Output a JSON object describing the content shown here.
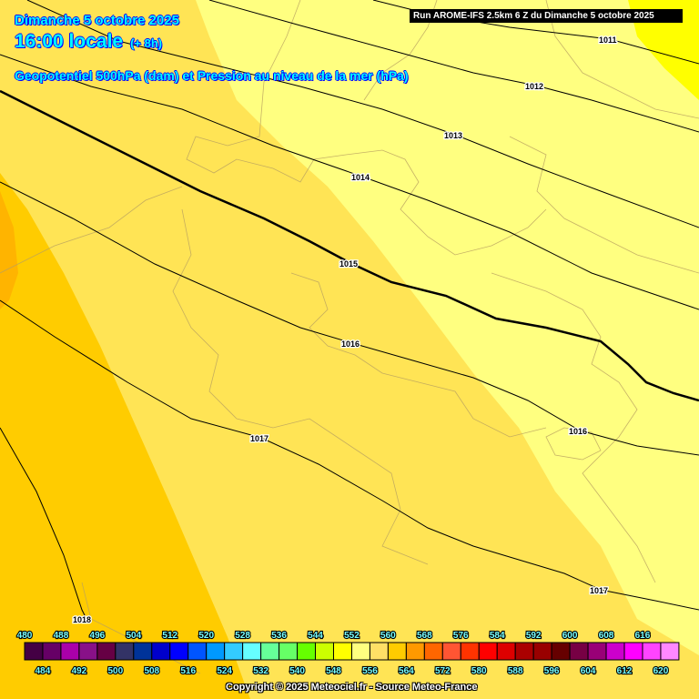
{
  "header": {
    "date": "Dimanche 5 octobre 2025",
    "time": "16:00 locale",
    "offset": "(+ 8h)",
    "parameter": "Geopotentiel 500hPa (dam) et Pression au niveau de la mer (hPa)",
    "run": "Run AROME-IFS 2.5km 6 Z du Dimanche 5 octobre 2025"
  },
  "map": {
    "field_colors": {
      "552": "#ffff00",
      "556": "#ffff80",
      "560": "#ffe455",
      "564": "#ffcc00"
    },
    "isobar_labels": [
      "1011",
      "1012",
      "1013",
      "1014",
      "1015",
      "1016",
      "1017",
      "1016",
      "1017",
      "1018"
    ]
  },
  "legend": {
    "values": [
      480,
      484,
      488,
      492,
      496,
      500,
      504,
      508,
      512,
      516,
      520,
      524,
      528,
      532,
      536,
      540,
      544,
      548,
      552,
      556,
      560,
      564,
      568,
      572,
      576,
      580,
      584,
      588,
      592,
      596,
      600,
      604,
      608,
      612,
      616,
      620
    ],
    "colors": [
      "#440044",
      "#660066",
      "#aa00aa",
      "#881188",
      "#660044",
      "#333366",
      "#003399",
      "#0000cc",
      "#0000ff",
      "#0055ff",
      "#0099ff",
      "#33ccff",
      "#66ffff",
      "#66ff99",
      "#66ff66",
      "#66ff00",
      "#ccff00",
      "#ffff00",
      "#ffff80",
      "#ffe066",
      "#ffcc00",
      "#ff9900",
      "#ff6600",
      "#ff5533",
      "#ff3300",
      "#ff0000",
      "#dd0000",
      "#aa0000",
      "#990000",
      "#660000",
      "#770044",
      "#990077",
      "#cc00cc",
      "#ff00ff",
      "#ff44ff",
      "#ff88ff"
    ]
  },
  "footer": {
    "copyright": "Copyright © 2025 Meteociel.fr - Source Meteo-France"
  }
}
